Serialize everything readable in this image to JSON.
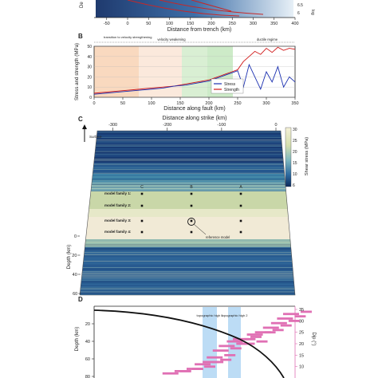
{
  "panel_a": {
    "xlabel": "Distance from trench (km)",
    "xticks": [
      "-50",
      "0",
      "50",
      "100",
      "150",
      "200",
      "250",
      "300",
      "350",
      "400"
    ],
    "ylabel_left": "De",
    "right_ticks": [
      "6.5",
      "6"
    ],
    "right_label": "log"
  },
  "panel_b": {
    "label": "B",
    "regimes": [
      "transition to velocity strengthening",
      "velocity weakening",
      "ductile regime"
    ],
    "xlabel": "Distance along fault (km)",
    "ylabel": "Stress and strength (MPa)",
    "legend": [
      "Stress",
      "Strength"
    ],
    "colors": {
      "stress": "#1a2fb0",
      "strength": "#d01818",
      "vs": "#f9d9bf",
      "vw": "#fbe9dc",
      "green": "#cdebc8"
    }
  },
  "panel_c": {
    "label": "C",
    "top_axis_label": "Distance along strike (km)",
    "top_ticks": [
      "-300",
      "-200",
      "-100",
      "0"
    ],
    "surface": "Surface",
    "columns": [
      "C",
      "B",
      "A"
    ],
    "families": [
      "model family 1:",
      "model family 2:",
      "model family 3:",
      "model family 4:"
    ],
    "reference": "reference model",
    "depth_label": "Depth (km)",
    "depth_ticks": [
      "0",
      "20",
      "40",
      "60"
    ],
    "colorbar_label": "Shear stress (MPa)",
    "colorbar_ticks": [
      "30",
      "25",
      "20",
      "15",
      "10",
      "6"
    ]
  },
  "panel_d": {
    "label": "D",
    "topo1": "topographic high 1",
    "topo2": "topographic high 2",
    "ylabel": "Depth (km)",
    "yticks": [
      "20",
      "40",
      "60",
      "80"
    ],
    "right_label": "Dip (°)",
    "right_ticks": [
      "35",
      "30",
      "25",
      "20",
      "15",
      "10"
    ],
    "colors": {
      "dip": "#e070b4",
      "topo": "#bcdcf5"
    }
  },
  "chart_data": [
    {
      "type": "line",
      "title": "",
      "xlabel": "Distance along fault (km)",
      "ylabel": "Stress and strength (MPa)",
      "xlim": [
        0,
        350
      ],
      "ylim": [
        0,
        50
      ],
      "series": [
        {
          "name": "Stress",
          "x": [
            0,
            20,
            40,
            60,
            80,
            100,
            120,
            140,
            160,
            180,
            200,
            210,
            220,
            230,
            240,
            250,
            260,
            270,
            280,
            290,
            300,
            310,
            320,
            330,
            340,
            350
          ],
          "values": [
            3,
            4,
            5,
            6,
            7,
            8,
            9,
            11,
            12,
            14,
            16,
            18,
            20,
            22,
            24,
            26,
            10,
            32,
            20,
            8,
            25,
            15,
            30,
            10,
            20,
            15
          ]
        },
        {
          "name": "Strength",
          "x": [
            0,
            20,
            40,
            60,
            80,
            100,
            120,
            140,
            160,
            180,
            200,
            210,
            220,
            230,
            240,
            250,
            260,
            270,
            280,
            290,
            300,
            310,
            320,
            330,
            340,
            350
          ],
          "values": [
            4,
            5,
            6,
            7,
            8,
            9,
            10,
            11,
            13,
            15,
            17,
            19,
            21,
            23,
            25,
            27,
            35,
            40,
            45,
            42,
            48,
            44,
            49,
            46,
            48,
            47
          ]
        }
      ]
    },
    {
      "type": "scatter",
      "title": "",
      "xlabel": "",
      "ylabel": "Dip (°)",
      "ylim": [
        5,
        35
      ],
      "series": [
        {
          "name": "",
          "x": [
            0.38,
            0.44,
            0.5,
            0.54,
            0.58,
            0.6,
            0.63,
            0.66,
            0.7,
            0.73,
            0.76,
            0.8,
            0.84,
            0.88,
            0.92,
            0.95,
            0.98
          ],
          "values": [
            7,
            8,
            9,
            11,
            12,
            14,
            17,
            19,
            21,
            22,
            20,
            24,
            25,
            27,
            29,
            31,
            33
          ]
        }
      ]
    }
  ]
}
